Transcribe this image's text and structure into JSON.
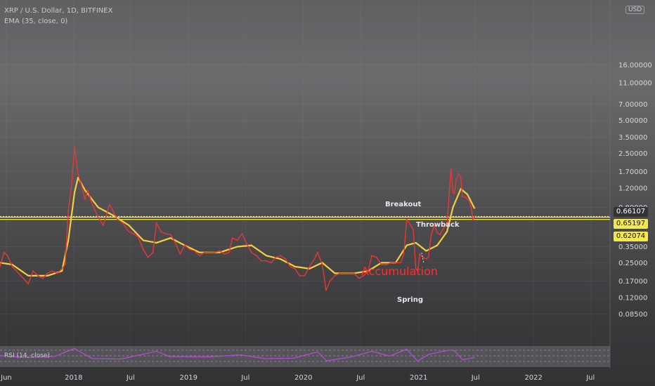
{
  "header": {
    "symbol_line": "XRP / U.S. Dollar, 1D, BITFINEX",
    "indicator_line": "EMA (35, close, 0)",
    "currency_button": "USD"
  },
  "rsi_label": "RSI (14, close)",
  "price_badges": {
    "last": "0.66107",
    "upper": "0.65197",
    "lower": "0.62074"
  },
  "colors": {
    "price_line": "#e53935",
    "ema_line": "#f6ce3b",
    "hline_white": "#ffffff",
    "hline_yellow": "#f4e94a",
    "rsi_line": "#b24bd6",
    "badge_last_bg": "#333336",
    "badge_yellow_bg": "#f4e94a",
    "annotation_red": "#ff2d2d"
  },
  "annotations": {
    "breakout": "Breakout",
    "throwback": "Throwback",
    "accumulation": "Accumulation",
    "spring": "Spring"
  },
  "chart_data": {
    "type": "line",
    "symbol": "XRP/USD",
    "timeframe": "1D",
    "exchange": "BITFINEX",
    "y_scale": "log",
    "ylim": [
      0.07,
      25
    ],
    "y_ticks": [
      "16.00000",
      "11.00000",
      "7.00000",
      "5.00000",
      "3.50000",
      "2.50000",
      "1.70000",
      "1.20000",
      "0.80000",
      "0.35000",
      "0.25000",
      "0.17000",
      "0.12000",
      "0.08500"
    ],
    "x_ticks": [
      "Jun",
      "2018",
      "Jul",
      "2019",
      "Jul",
      "2020",
      "Jul",
      "2021",
      "Jul",
      "2022",
      "Jul"
    ],
    "x_tick_dates": [
      "2017-06-01",
      "2018-01-01",
      "2018-07-01",
      "2019-01-01",
      "2019-07-01",
      "2020-01-01",
      "2020-07-01",
      "2021-01-01",
      "2021-07-01",
      "2022-01-01",
      "2022-07-01"
    ],
    "x_range": [
      "2017-05-12",
      "2022-09-01"
    ],
    "series": [
      {
        "name": "XRP / U.S. Dollar",
        "x": [
          "2017-05-12",
          "2017-05-25",
          "2017-06-05",
          "2017-06-20",
          "2017-07-10",
          "2017-07-25",
          "2017-08-10",
          "2017-08-25",
          "2017-09-10",
          "2017-09-25",
          "2017-10-10",
          "2017-10-25",
          "2017-11-10",
          "2017-11-25",
          "2017-12-05",
          "2017-12-15",
          "2017-12-25",
          "2018-01-04",
          "2018-01-15",
          "2018-01-25",
          "2018-02-06",
          "2018-02-15",
          "2018-02-25",
          "2018-03-10",
          "2018-03-20",
          "2018-04-05",
          "2018-04-25",
          "2018-05-05",
          "2018-05-20",
          "2018-06-05",
          "2018-06-25",
          "2018-07-10",
          "2018-07-25",
          "2018-08-10",
          "2018-08-25",
          "2018-09-10",
          "2018-09-21",
          "2018-10-05",
          "2018-10-20",
          "2018-11-05",
          "2018-11-20",
          "2018-12-05",
          "2018-12-20",
          "2019-01-05",
          "2019-01-20",
          "2019-02-05",
          "2019-02-20",
          "2019-03-10",
          "2019-03-25",
          "2019-04-10",
          "2019-04-25",
          "2019-05-10",
          "2019-05-20",
          "2019-06-05",
          "2019-06-20",
          "2019-07-05",
          "2019-07-20",
          "2019-08-05",
          "2019-08-20",
          "2019-09-05",
          "2019-09-20",
          "2019-10-05",
          "2019-10-20",
          "2019-11-05",
          "2019-11-20",
          "2019-12-05",
          "2019-12-20",
          "2020-01-05",
          "2020-01-20",
          "2020-02-05",
          "2020-02-15",
          "2020-03-01",
          "2020-03-13",
          "2020-03-25",
          "2020-04-10",
          "2020-04-25",
          "2020-05-10",
          "2020-05-25",
          "2020-06-10",
          "2020-06-25",
          "2020-07-10",
          "2020-07-25",
          "2020-08-05",
          "2020-08-20",
          "2020-09-05",
          "2020-09-20",
          "2020-10-05",
          "2020-10-20",
          "2020-11-05",
          "2020-11-15",
          "2020-11-24",
          "2020-12-05",
          "2020-12-15",
          "2020-12-23",
          "2020-12-29",
          "2021-01-05",
          "2021-01-15",
          "2021-01-25",
          "2021-02-01",
          "2021-02-10",
          "2021-02-20",
          "2021-03-01",
          "2021-03-10",
          "2021-03-20",
          "2021-04-01",
          "2021-04-06",
          "2021-04-14",
          "2021-04-20",
          "2021-04-25",
          "2021-05-01",
          "2021-05-08",
          "2021-05-15",
          "2021-05-20",
          "2021-05-28",
          "2021-06-05",
          "2021-06-12",
          "2021-06-18",
          "2021-06-22",
          "2021-06-28"
        ],
        "values": [
          0.23,
          0.31,
          0.29,
          0.23,
          0.2,
          0.18,
          0.16,
          0.21,
          0.19,
          0.18,
          0.2,
          0.21,
          0.2,
          0.22,
          0.24,
          0.75,
          1.25,
          2.85,
          1.6,
          1.3,
          0.95,
          1.15,
          0.92,
          0.75,
          0.65,
          0.55,
          0.85,
          0.75,
          0.62,
          0.58,
          0.48,
          0.46,
          0.43,
          0.33,
          0.28,
          0.31,
          0.58,
          0.48,
          0.46,
          0.45,
          0.38,
          0.3,
          0.36,
          0.33,
          0.32,
          0.29,
          0.31,
          0.31,
          0.31,
          0.32,
          0.3,
          0.31,
          0.42,
          0.4,
          0.46,
          0.37,
          0.31,
          0.29,
          0.26,
          0.26,
          0.25,
          0.28,
          0.29,
          0.27,
          0.23,
          0.22,
          0.19,
          0.19,
          0.23,
          0.27,
          0.31,
          0.24,
          0.14,
          0.17,
          0.19,
          0.2,
          0.2,
          0.2,
          0.2,
          0.18,
          0.19,
          0.21,
          0.29,
          0.28,
          0.24,
          0.24,
          0.25,
          0.25,
          0.25,
          0.3,
          0.62,
          0.56,
          0.5,
          0.22,
          0.21,
          0.3,
          0.28,
          0.27,
          0.28,
          0.45,
          0.55,
          0.47,
          0.45,
          0.51,
          0.58,
          0.85,
          1.8,
          1.1,
          1.06,
          1.45,
          1.62,
          1.5,
          1.0,
          1.0,
          0.95,
          0.9,
          0.78,
          0.62,
          0.66
        ]
      },
      {
        "name": "EMA (35, close, 0)",
        "x": [
          "2017-05-12",
          "2017-06-20",
          "2017-08-10",
          "2017-10-10",
          "2017-11-25",
          "2017-12-15",
          "2018-01-04",
          "2018-01-15",
          "2018-02-06",
          "2018-03-20",
          "2018-05-05",
          "2018-06-25",
          "2018-08-10",
          "2018-09-21",
          "2018-11-05",
          "2018-12-20",
          "2019-02-05",
          "2019-04-10",
          "2019-06-05",
          "2019-07-20",
          "2019-09-05",
          "2019-10-20",
          "2019-12-05",
          "2020-01-20",
          "2020-03-01",
          "2020-04-10",
          "2020-06-10",
          "2020-07-25",
          "2020-09-05",
          "2020-10-20",
          "2020-11-24",
          "2020-12-23",
          "2021-01-25",
          "2021-03-01",
          "2021-04-01",
          "2021-04-20",
          "2021-05-15",
          "2021-06-05",
          "2021-06-28"
        ],
        "values": [
          0.25,
          0.24,
          0.19,
          0.19,
          0.21,
          0.4,
          1.1,
          1.5,
          1.15,
          0.8,
          0.68,
          0.55,
          0.4,
          0.38,
          0.42,
          0.36,
          0.31,
          0.31,
          0.35,
          0.36,
          0.29,
          0.27,
          0.23,
          0.22,
          0.25,
          0.2,
          0.2,
          0.21,
          0.25,
          0.25,
          0.36,
          0.38,
          0.32,
          0.36,
          0.48,
          0.8,
          1.18,
          1.05,
          0.78
        ]
      },
      {
        "name": "RSI (14, close)",
        "x": [
          "2017-05-12",
          "2017-08-01",
          "2017-11-01",
          "2017-12-20",
          "2018-01-04",
          "2018-03-01",
          "2018-06-01",
          "2018-09-21",
          "2018-11-01",
          "2019-03-01",
          "2019-06-15",
          "2019-09-01",
          "2019-12-01",
          "2020-02-15",
          "2020-03-15",
          "2020-06-01",
          "2020-08-05",
          "2020-10-01",
          "2020-11-24",
          "2020-12-29",
          "2021-02-01",
          "2021-04-06",
          "2021-04-25",
          "2021-05-20",
          "2021-06-28"
        ],
        "values": [
          55,
          45,
          50,
          80,
          88,
          40,
          38,
          75,
          50,
          48,
          58,
          40,
          42,
          72,
          30,
          48,
          75,
          52,
          85,
          28,
          60,
          80,
          78,
          35,
          45
        ]
      }
    ],
    "hlines": [
      0.66107,
      0.65197,
      0.62074
    ],
    "annotations": [
      {
        "text": "Breakout",
        "x": "2020-11-24",
        "y": 1.0
      },
      {
        "text": "Throwback",
        "x": "2021-03-01",
        "y": 0.58
      },
      {
        "text": "Accumulation",
        "x": "2021-01-05",
        "y": 0.26
      },
      {
        "text": "Spring",
        "x": "2020-12-29",
        "y": 0.16
      }
    ]
  }
}
